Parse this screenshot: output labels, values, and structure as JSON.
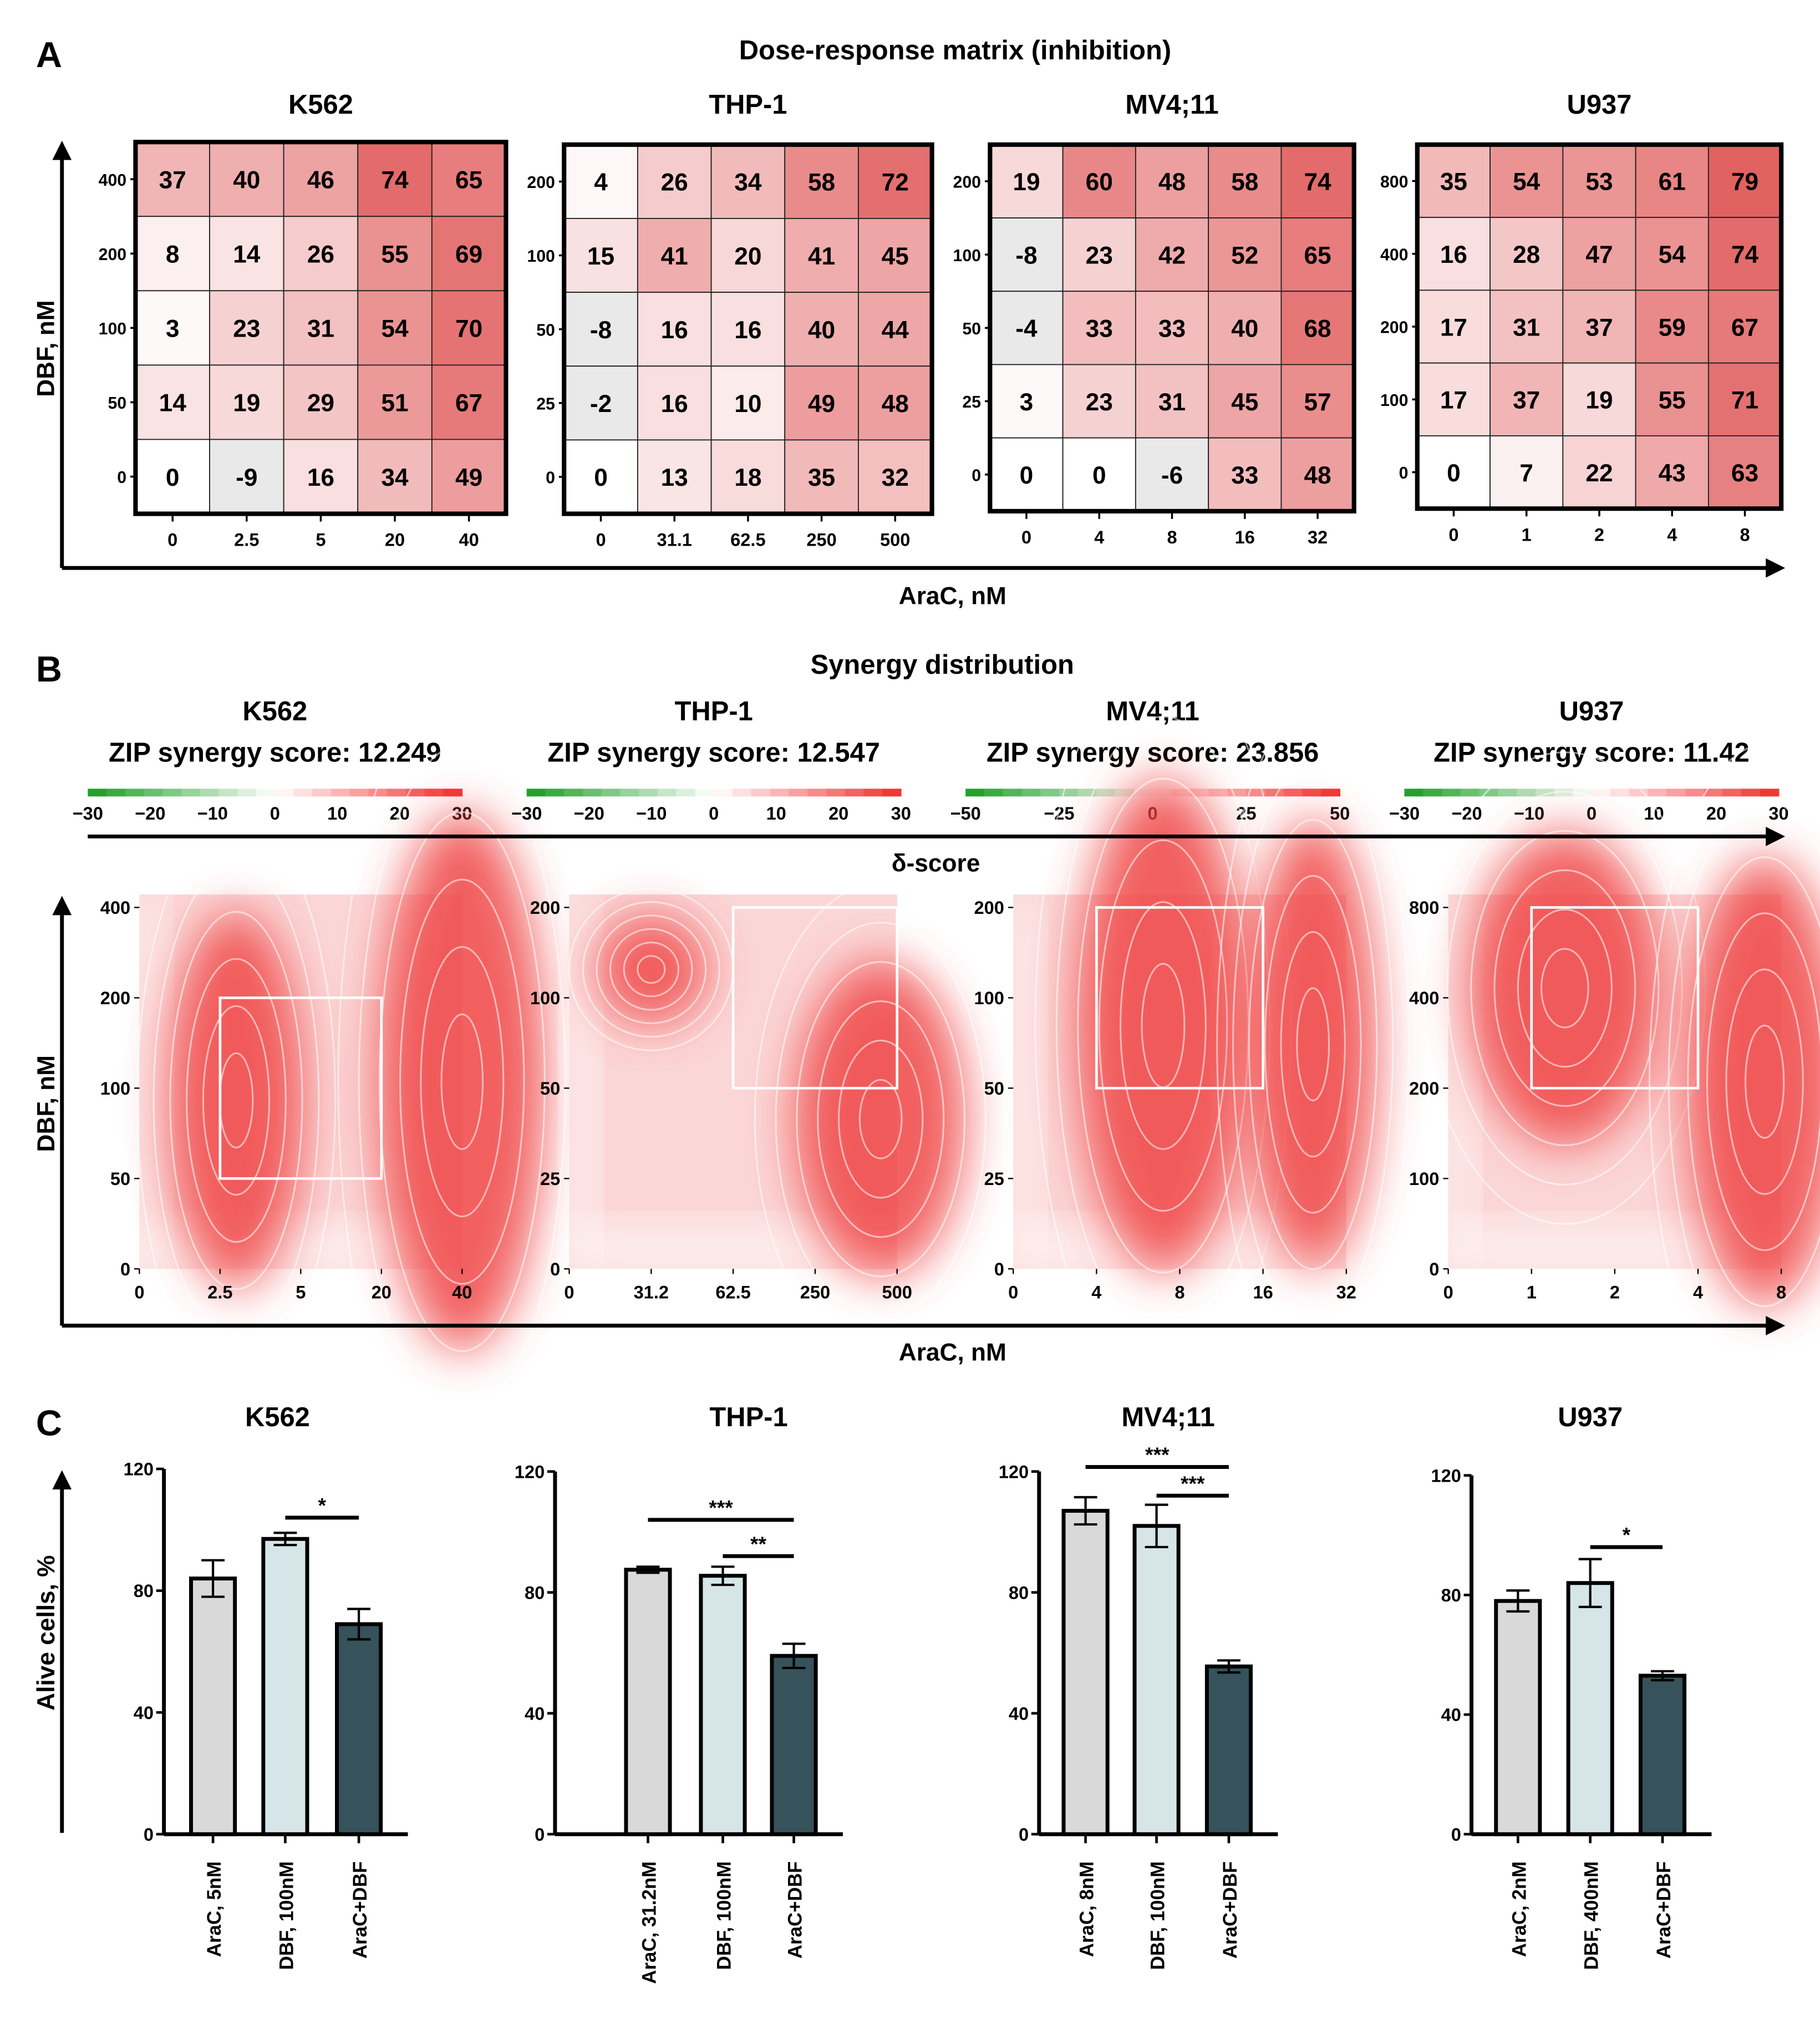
{
  "figure": {
    "panel_a": {
      "label": "A",
      "title": "Dose-response matrix (inhibition)",
      "xlabel": "AraC, nM",
      "ylabel": "DBF, nM"
    },
    "panel_b": {
      "label": "B",
      "title": "Synergy distribution",
      "colorbar_label": "δ-score",
      "xlabel": "AraC, nM",
      "ylabel": "DBF, nM"
    },
    "panel_c": {
      "label": "C",
      "ylabel": "Alive cells, %"
    },
    "colors": {
      "bar_arac": "#d9d9d9",
      "bar_dbf": "#d6e6e8",
      "bar_combo": "#36525a",
      "negative_cell": "#e9e9e9",
      "synergy_high": "#f03c3c",
      "synergy_low": "#1a9e2a"
    }
  },
  "chart_data": [
    {
      "panel": "A",
      "type": "heatmap",
      "title": "K562",
      "x": [
        "0",
        "2.5",
        "5",
        "20",
        "40"
      ],
      "y_top_to_bottom": [
        "400",
        "200",
        "100",
        "50",
        "0"
      ],
      "values": [
        [
          37,
          40,
          46,
          74,
          65
        ],
        [
          8,
          14,
          26,
          55,
          69
        ],
        [
          3,
          23,
          31,
          54,
          70
        ],
        [
          14,
          19,
          29,
          51,
          67
        ],
        [
          0,
          -9,
          16,
          34,
          49
        ]
      ]
    },
    {
      "panel": "A",
      "type": "heatmap",
      "title": "THP-1",
      "x": [
        "0",
        "31.1",
        "62.5",
        "250",
        "500"
      ],
      "y_top_to_bottom": [
        "200",
        "100",
        "50",
        "25",
        "0"
      ],
      "values": [
        [
          4,
          26,
          34,
          58,
          72
        ],
        [
          15,
          41,
          20,
          41,
          45
        ],
        [
          -8,
          16,
          16,
          40,
          44
        ],
        [
          -2,
          16,
          10,
          49,
          48
        ],
        [
          0,
          13,
          18,
          35,
          32
        ]
      ]
    },
    {
      "panel": "A",
      "type": "heatmap",
      "title": "MV4;11",
      "x": [
        "0",
        "4",
        "8",
        "16",
        "32"
      ],
      "y_top_to_bottom": [
        "200",
        "100",
        "50",
        "25",
        "0"
      ],
      "values": [
        [
          19,
          60,
          48,
          58,
          74
        ],
        [
          -8,
          23,
          42,
          52,
          65
        ],
        [
          -4,
          33,
          33,
          40,
          68
        ],
        [
          3,
          23,
          31,
          45,
          57
        ],
        [
          0,
          0,
          -6,
          33,
          48
        ]
      ]
    },
    {
      "panel": "A",
      "type": "heatmap",
      "title": "U937",
      "x": [
        "0",
        "1",
        "2",
        "4",
        "8"
      ],
      "y_top_to_bottom": [
        "800",
        "400",
        "200",
        "100",
        "0"
      ],
      "values": [
        [
          35,
          54,
          53,
          61,
          79
        ],
        [
          16,
          28,
          47,
          54,
          74
        ],
        [
          17,
          31,
          37,
          59,
          67
        ],
        [
          17,
          37,
          19,
          55,
          71
        ],
        [
          0,
          7,
          22,
          43,
          63
        ]
      ]
    },
    {
      "panel": "B",
      "type": "heatmap",
      "title": "K562",
      "score_text": "ZIP synergy score: 12.249",
      "colorbar_ticks": [
        "−30",
        "−20",
        "−10",
        "0",
        "10",
        "20",
        "30"
      ],
      "colorbar_range": [
        -30,
        30
      ],
      "x": [
        "0",
        "2.5",
        "5",
        "20",
        "40"
      ],
      "y": [
        "0",
        "50",
        "100",
        "200",
        "400"
      ],
      "highlight": {
        "x": [
          "2.5",
          "20"
        ],
        "y": [
          "50",
          "200"
        ]
      }
    },
    {
      "panel": "B",
      "type": "heatmap",
      "title": "THP-1",
      "score_text": "ZIP synergy score: 12.547",
      "colorbar_ticks": [
        "−30",
        "−20",
        "−10",
        "0",
        "10",
        "20",
        "30"
      ],
      "colorbar_range": [
        -30,
        30
      ],
      "x": [
        "0",
        "31.2",
        "62.5",
        "250",
        "500"
      ],
      "y": [
        "0",
        "25",
        "50",
        "100",
        "200"
      ],
      "highlight": {
        "x": [
          "62.5",
          "500"
        ],
        "y": [
          "50",
          "200"
        ]
      }
    },
    {
      "panel": "B",
      "type": "heatmap",
      "title": "MV4;11",
      "score_text": "ZIP synergy score: 23.856",
      "colorbar_ticks": [
        "−50",
        "−25",
        "0",
        "25",
        "50"
      ],
      "colorbar_range": [
        -50,
        50
      ],
      "x": [
        "0",
        "4",
        "8",
        "16",
        "32"
      ],
      "y": [
        "0",
        "25",
        "50",
        "100",
        "200"
      ],
      "highlight": {
        "x": [
          "4",
          "16"
        ],
        "y": [
          "50",
          "200"
        ]
      }
    },
    {
      "panel": "B",
      "type": "heatmap",
      "title": "U937",
      "score_text": "ZIP synergy score: 11.42",
      "colorbar_ticks": [
        "−30",
        "−20",
        "−10",
        "0",
        "10",
        "20",
        "30"
      ],
      "colorbar_range": [
        -30,
        30
      ],
      "x": [
        "0",
        "1",
        "2",
        "4",
        "8"
      ],
      "y": [
        "0",
        "100",
        "200",
        "400",
        "800"
      ],
      "highlight": {
        "x": [
          "1",
          "4"
        ],
        "y": [
          "200",
          "800"
        ]
      }
    },
    {
      "panel": "C",
      "type": "bar",
      "title": "K562",
      "categories": [
        "AraC, 5nM",
        "DBF, 100nM",
        "AraC+DBF"
      ],
      "values": [
        84,
        97,
        69
      ],
      "errors": [
        6,
        2,
        5
      ],
      "ylim": [
        0,
        120
      ],
      "yticks": [
        "0",
        "40",
        "80",
        "120"
      ],
      "significance": [
        {
          "from": 1,
          "to": 2,
          "label": "*",
          "level": 104
        }
      ]
    },
    {
      "panel": "C",
      "type": "bar",
      "title": "THP-1",
      "categories": [
        "AraC, 31.2nM",
        "DBF, 100nM",
        "AraC+DBF"
      ],
      "values": [
        87.5,
        85.5,
        59
      ],
      "errors": [
        1,
        3,
        4
      ],
      "ylim": [
        0,
        120
      ],
      "yticks": [
        "0",
        "40",
        "80",
        "120"
      ],
      "significance": [
        {
          "from": 0,
          "to": 2,
          "label": "***",
          "level": 104
        },
        {
          "from": 1,
          "to": 2,
          "label": "**",
          "level": 92
        }
      ]
    },
    {
      "panel": "C",
      "type": "bar",
      "title": "MV4;11",
      "categories": [
        "AraC, 8nM",
        "DBF, 100nM",
        "AraC+DBF"
      ],
      "values": [
        107,
        102,
        55.5
      ],
      "errors": [
        4.5,
        7,
        2
      ],
      "ylim": [
        0,
        120
      ],
      "yticks": [
        "0",
        "40",
        "80",
        "120"
      ],
      "significance": [
        {
          "from": 0,
          "to": 2,
          "label": "***",
          "level": 121.5
        },
        {
          "from": 1,
          "to": 2,
          "label": "***",
          "level": 112
        }
      ]
    },
    {
      "panel": "C",
      "type": "bar",
      "title": "U937",
      "categories": [
        "AraC, 2nM",
        "DBF, 400nM",
        "AraC+DBF"
      ],
      "values": [
        78,
        84,
        53
      ],
      "errors": [
        3.5,
        8,
        1.5
      ],
      "ylim": [
        0,
        120
      ],
      "yticks": [
        "0",
        "40",
        "80",
        "120"
      ],
      "significance": [
        {
          "from": 1,
          "to": 2,
          "label": "*",
          "level": 96
        }
      ]
    }
  ]
}
